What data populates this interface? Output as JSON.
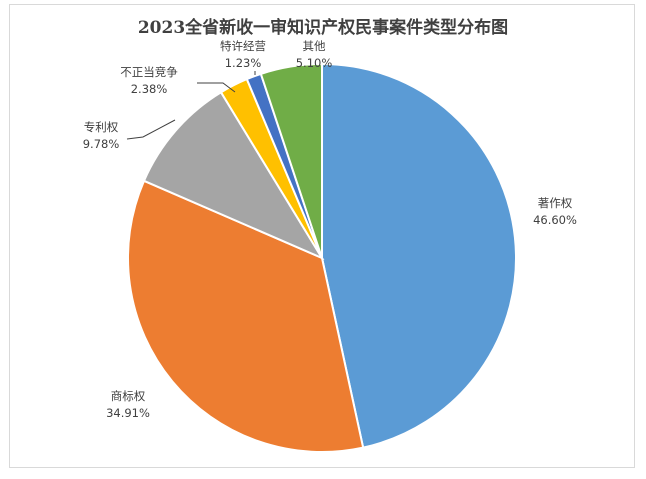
{
  "chart_data": {
    "type": "pie",
    "title": "2023全省新收一审知识产权民事案件类型分布图",
    "slices": [
      {
        "name": "著作权",
        "value": 46.6,
        "label": "46.60%",
        "color": "#5b9bd5"
      },
      {
        "name": "商标权",
        "value": 34.91,
        "label": "34.91%",
        "color": "#ed7d31"
      },
      {
        "name": "专利权",
        "value": 9.78,
        "label": "9.78%",
        "color": "#a5a5a5"
      },
      {
        "name": "不正当竞争",
        "value": 2.38,
        "label": "2.38%",
        "color": "#ffc000"
      },
      {
        "name": "特许经营",
        "value": 1.23,
        "label": "1.23%",
        "color": "#4472c4"
      },
      {
        "name": "其他",
        "value": 5.1,
        "label": "5.10%",
        "color": "#70ad47"
      }
    ]
  }
}
